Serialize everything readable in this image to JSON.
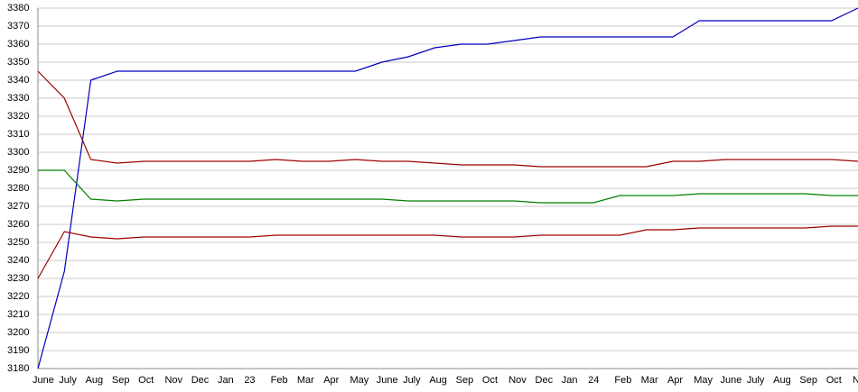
{
  "chart_data": {
    "type": "line",
    "categories": [
      "June",
      "July",
      "Aug",
      "Sep",
      "Oct",
      "Nov",
      "Dec",
      "Jan",
      "23",
      "Feb",
      "Mar",
      "Apr",
      "May",
      "June",
      "July",
      "Aug",
      "Sep",
      "Oct",
      "Nov",
      "Dec",
      "Jan",
      "24",
      "Feb",
      "Mar",
      "Apr",
      "May",
      "June",
      "July",
      "Aug",
      "Sep",
      "Oct",
      "No"
    ],
    "series": [
      {
        "color": "#0000c0",
        "values": [
          3180,
          3234,
          3340,
          3345,
          3345,
          3345,
          3345,
          3345,
          3345,
          3345,
          3345,
          3345,
          3345,
          3350,
          3353,
          3358,
          3360,
          3360,
          3362,
          3364,
          3364,
          3364,
          3364,
          3364,
          3364,
          3373,
          3373,
          3373,
          3373,
          3373,
          3373,
          3380
        ]
      },
      {
        "color": "#a00000",
        "values": [
          3345,
          3330,
          3296,
          3294,
          3295,
          3295,
          3295,
          3295,
          3295,
          3296,
          3295,
          3295,
          3296,
          3295,
          3295,
          3294,
          3293,
          3293,
          3293,
          3292,
          3292,
          3292,
          3292,
          3292,
          3295,
          3295,
          3296,
          3296,
          3296,
          3296,
          3296,
          3295
        ]
      },
      {
        "color": "#008000",
        "values": [
          3290,
          3290,
          3274,
          3273,
          3274,
          3274,
          3274,
          3274,
          3274,
          3274,
          3274,
          3274,
          3274,
          3274,
          3273,
          3273,
          3273,
          3273,
          3273,
          3272,
          3272,
          3272,
          3276,
          3276,
          3276,
          3277,
          3277,
          3277,
          3277,
          3277,
          3276,
          3276
        ]
      },
      {
        "color": "#a00000",
        "values": [
          3230,
          3256,
          3253,
          3252,
          3253,
          3253,
          3253,
          3253,
          3253,
          3254,
          3254,
          3254,
          3254,
          3254,
          3254,
          3254,
          3253,
          3253,
          3253,
          3254,
          3254,
          3254,
          3254,
          3257,
          3257,
          3258,
          3258,
          3258,
          3258,
          3258,
          3259,
          3259
        ]
      }
    ],
    "ylim": [
      3180,
      3380
    ],
    "yticks": [
      3180,
      3190,
      3200,
      3210,
      3220,
      3230,
      3240,
      3250,
      3260,
      3270,
      3280,
      3290,
      3300,
      3310,
      3320,
      3330,
      3340,
      3350,
      3360,
      3370,
      3380
    ],
    "grid": true
  }
}
